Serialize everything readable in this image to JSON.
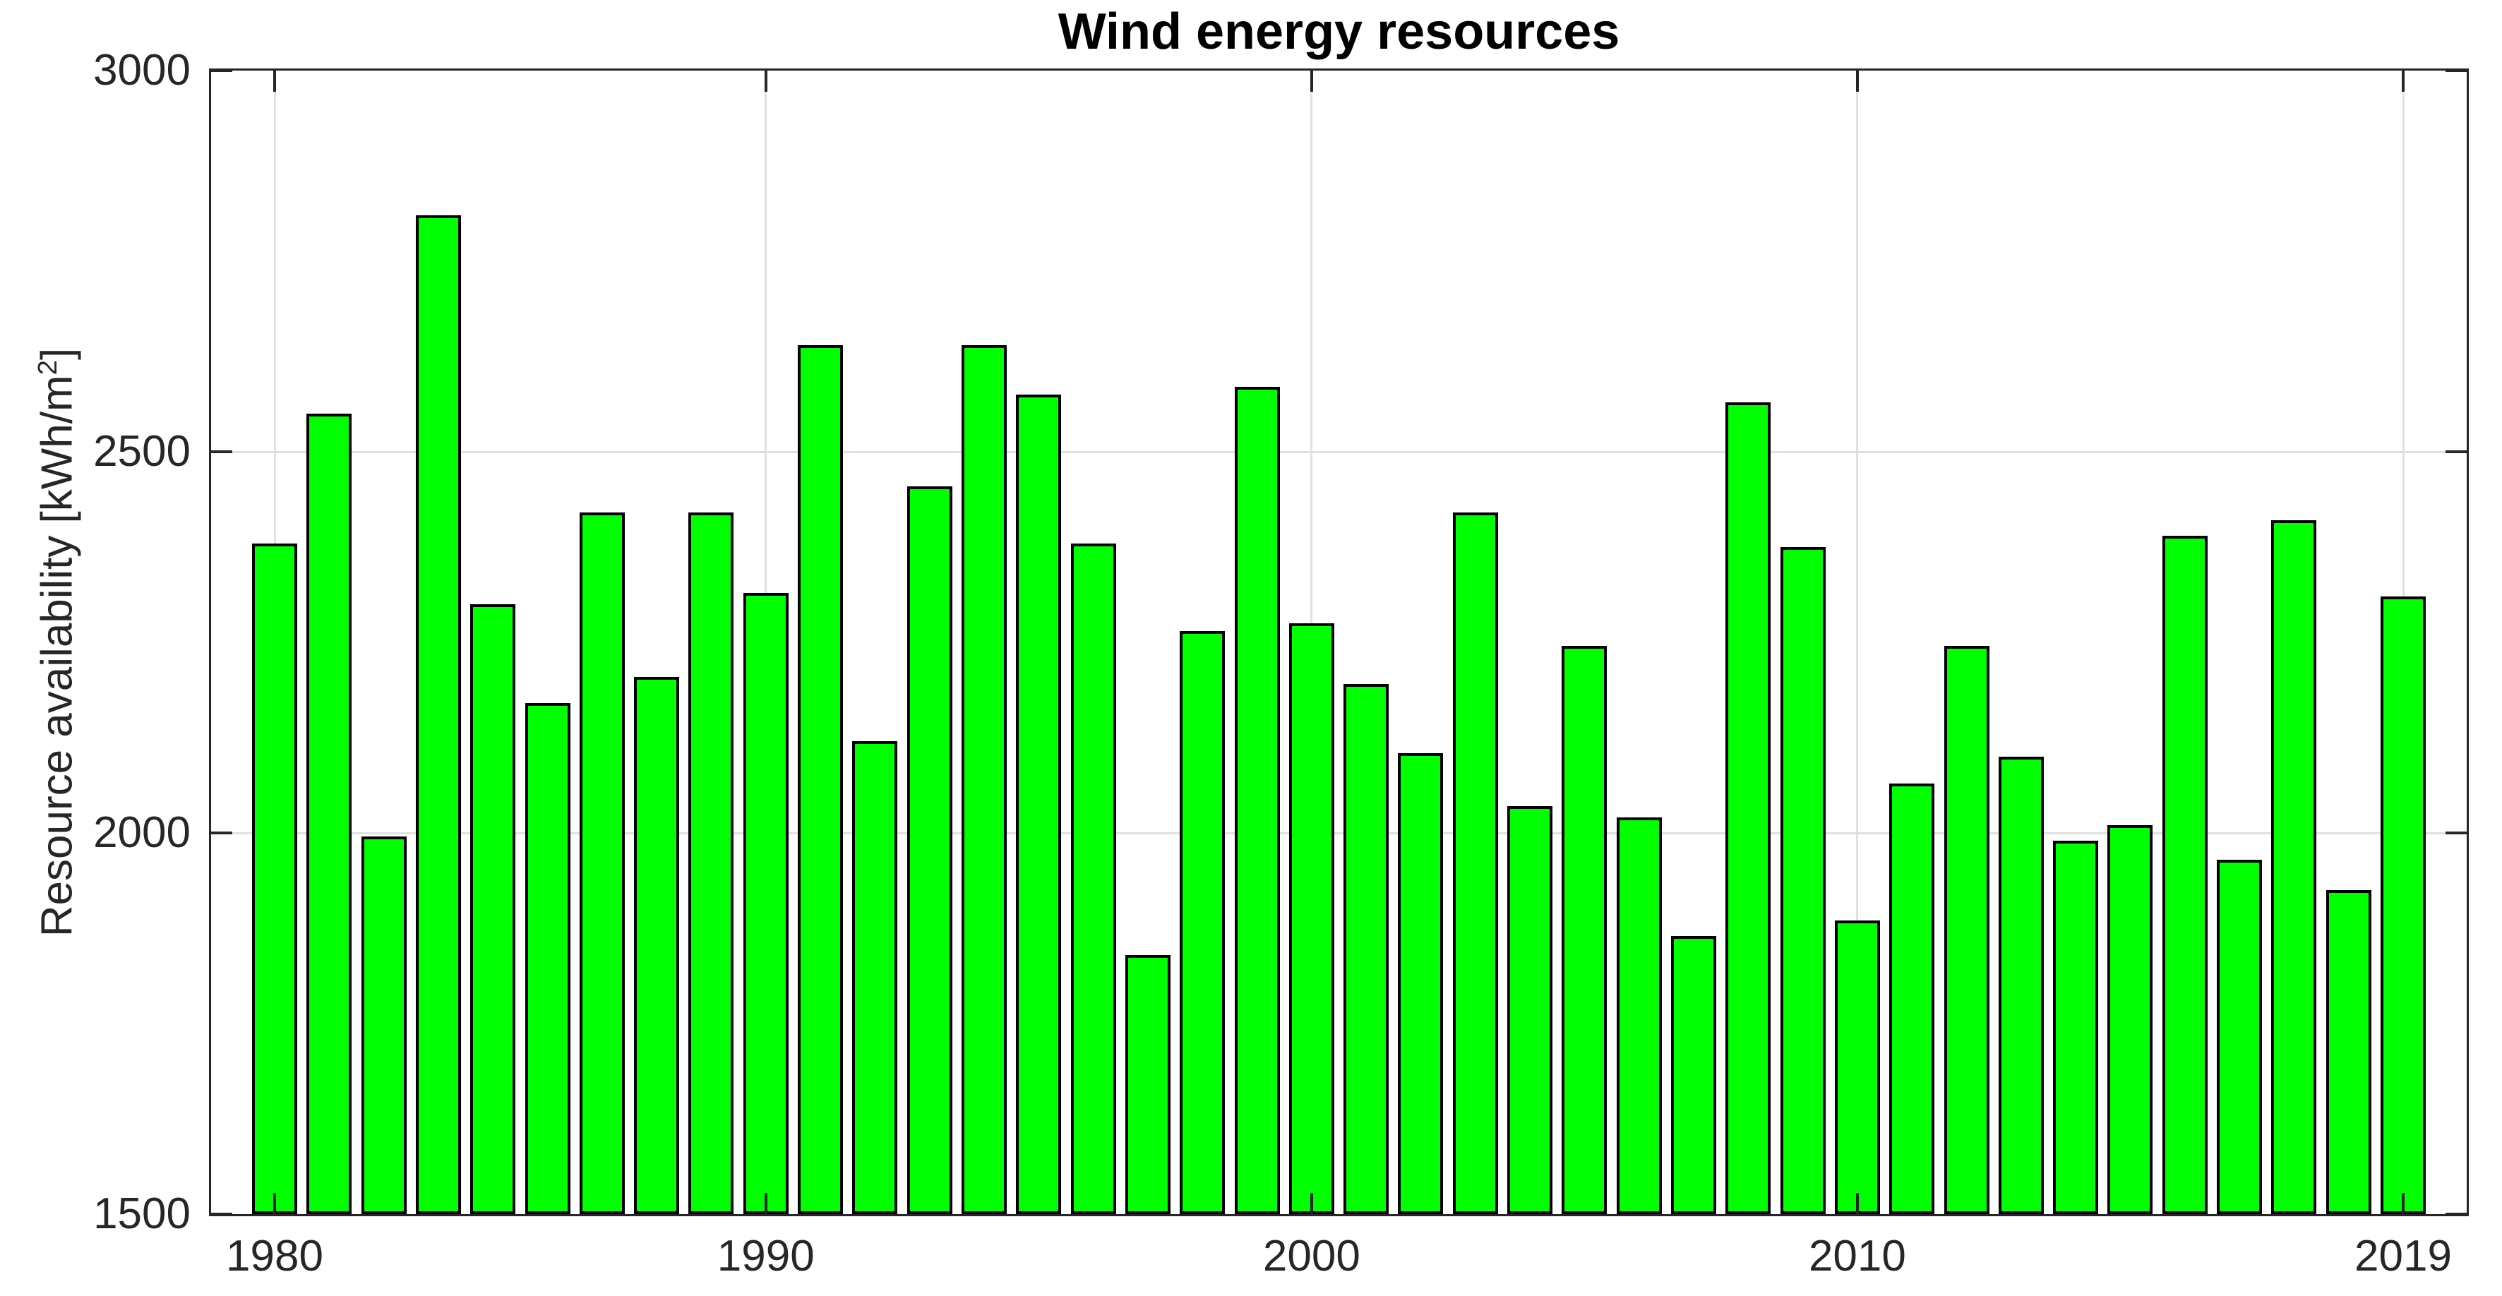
{
  "chart_data": {
    "type": "bar",
    "title": "Wind energy resources",
    "ylabel": "Resource availability [kWh/m2]",
    "ylabel_parts": {
      "pre": "Resource availability [kWh/m",
      "sup": "2",
      "post": "]"
    },
    "xlabel": "",
    "categories": [
      "1980",
      "1981",
      "1982",
      "1983",
      "1984",
      "1985",
      "1986",
      "1987",
      "1988",
      "1989",
      "1990",
      "1991",
      "1992",
      "1993",
      "1994",
      "1995",
      "1996",
      "1997",
      "1998",
      "1999",
      "2000",
      "2001",
      "2002",
      "2003",
      "2004",
      "2005",
      "2006",
      "2007",
      "2008",
      "2009",
      "2010",
      "2011",
      "2012",
      "2013",
      "2014",
      "2015",
      "2016",
      "2017",
      "2018",
      "2019"
    ],
    "values": [
      2380,
      2550,
      1995,
      2810,
      2300,
      2170,
      2420,
      2205,
      2420,
      2315,
      2640,
      2120,
      2455,
      2640,
      2575,
      2380,
      1840,
      2265,
      2585,
      2275,
      2195,
      2105,
      2420,
      2035,
      2245,
      2020,
      1865,
      2565,
      2375,
      1885,
      2065,
      2245,
      2100,
      1990,
      2010,
      2390,
      1965,
      2410,
      1925,
      2310
    ],
    "ylim": [
      1500,
      3000
    ],
    "yticks": [
      {
        "value": 1500,
        "label": "1500"
      },
      {
        "value": 2000,
        "label": "2000"
      },
      {
        "value": 2500,
        "label": "2500"
      },
      {
        "value": 3000,
        "label": "3000"
      }
    ],
    "xticks": [
      {
        "bar": 1,
        "label": "1980"
      },
      {
        "bar": 10,
        "label": "1990"
      },
      {
        "bar": 20,
        "label": "2000"
      },
      {
        "bar": 30,
        "label": "2010"
      },
      {
        "bar": 40,
        "label": "2019"
      }
    ],
    "grid": true,
    "legend": null,
    "colors": {
      "bar_fill": "#00FF00",
      "bar_edge": "#000000",
      "grid": "#E0E0E0",
      "axis": "#262626",
      "text": "#262626",
      "title_text": "#000000",
      "background": "#FFFFFF"
    }
  }
}
